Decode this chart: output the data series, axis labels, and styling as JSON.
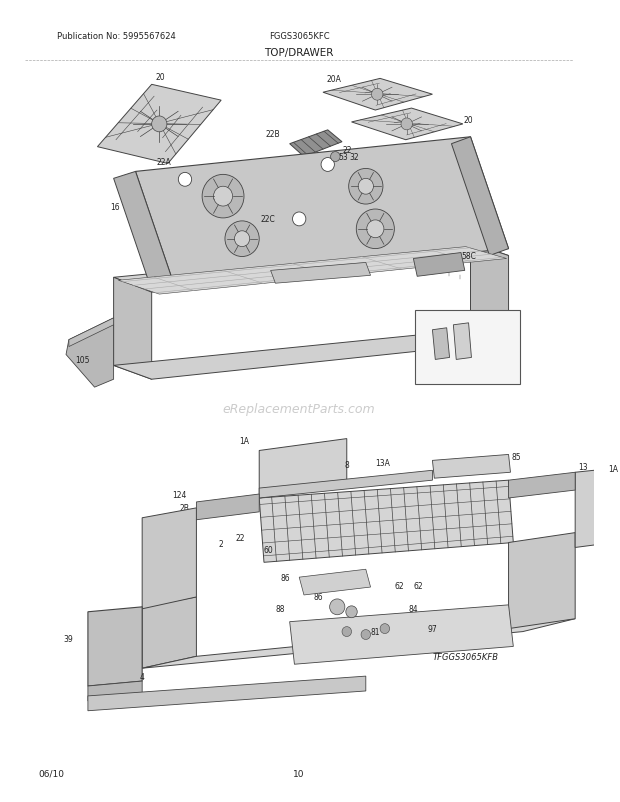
{
  "title": "TOP/DRAWER",
  "model": "FGGS3065KFC",
  "publication": "Publication No: 5995567624",
  "watermark": "eReplacementParts.com",
  "footer_left": "06/10",
  "footer_center": "10",
  "model_code": "TFGGS3065KFB",
  "background_color": "#ffffff",
  "fig_width": 6.2,
  "fig_height": 8.03,
  "dpi": 100
}
